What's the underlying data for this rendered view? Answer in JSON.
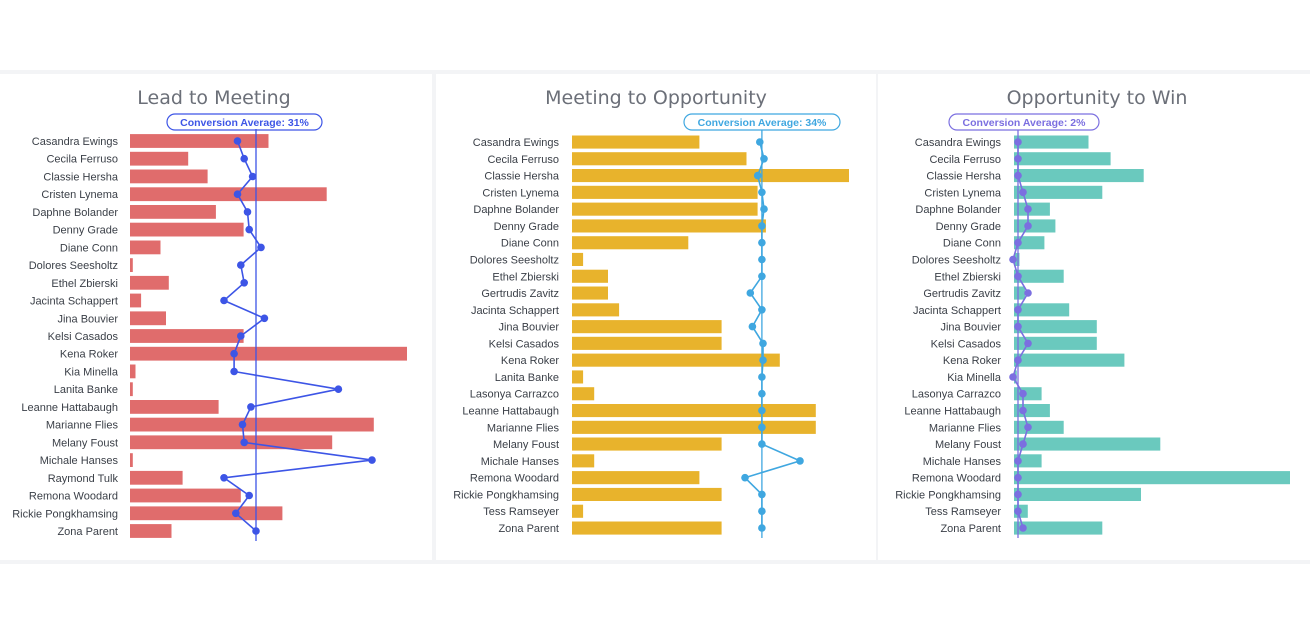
{
  "chart_data": [
    {
      "type": "bar",
      "title": "Lead to Meeting",
      "average_label": "Conversion Average: 31%",
      "bar_color": "#e06c6c",
      "accent_color": "#3d55e6",
      "categories": [
        "Casandra Ewings",
        "Cecila Ferruso",
        "Classie Hersha",
        "Cristen Lynema",
        "Daphne Bolander",
        "Denny Grade",
        "Diane Conn",
        "Dolores Seesholtz",
        "Ethel Zbierski",
        "Jacinta Schappert",
        "Jina Bouvier",
        "Kelsi Casados",
        "Kena Roker",
        "Kia Minella",
        "Lanita Banke",
        "Leanne Hattabaugh",
        "Marianne Flies",
        "Melany Foust",
        "Michale Hanses",
        "Raymond Tulk",
        "Remona Woodard",
        "Rickie Pongkhamsing",
        "Zona Parent"
      ],
      "values": [
        50,
        21,
        28,
        71,
        31,
        41,
        11,
        1,
        14,
        4,
        13,
        41,
        100,
        2,
        1,
        32,
        88,
        73,
        1,
        19,
        40,
        55,
        15
      ],
      "conversion_rates": [
        20,
        24,
        29,
        20,
        26,
        27,
        34,
        22,
        24,
        12,
        36,
        22,
        18,
        18,
        80,
        28,
        23,
        24,
        100,
        12,
        27,
        19,
        31
      ],
      "conversion_average": 31
    },
    {
      "type": "bar",
      "title": "Meeting to Opportunity",
      "average_label": "Conversion Average: 34%",
      "bar_color": "#e8b32c",
      "accent_color": "#3fa7e0",
      "categories": [
        "Casandra Ewings",
        "Cecila Ferruso",
        "Classie Hersha",
        "Cristen Lynema",
        "Daphne Bolander",
        "Denny Grade",
        "Diane Conn",
        "Dolores Seesholtz",
        "Ethel Zbierski",
        "Gertrudis Zavitz",
        "Jacinta Schappert",
        "Jina Bouvier",
        "Kelsi Casados",
        "Kena Roker",
        "Lanita Banke",
        "Lasonya Carrazco",
        "Leanne Hattabaugh",
        "Marianne Flies",
        "Melany Foust",
        "Michale Hanses",
        "Remona Woodard",
        "Rickie Pongkhamsing",
        "Tess Ramseyer",
        "Zona Parent"
      ],
      "values": [
        46,
        63,
        100,
        67,
        67,
        70,
        42,
        4,
        13,
        13,
        17,
        54,
        54,
        75,
        4,
        8,
        88,
        88,
        54,
        8,
        46,
        54,
        4,
        54
      ],
      "conversion_rates": [
        32,
        36,
        30,
        34,
        36,
        34,
        34,
        34,
        34,
        23,
        34,
        25,
        35,
        35,
        34,
        34,
        34,
        34,
        34,
        70,
        18,
        34,
        34,
        34
      ],
      "conversion_average": 34
    },
    {
      "type": "bar",
      "title": "Opportunity to Win",
      "average_label": "Conversion Average: 2%",
      "bar_color": "#6ac9be",
      "accent_color": "#7b6fe0",
      "categories": [
        "Casandra Ewings",
        "Cecila Ferruso",
        "Classie Hersha",
        "Cristen Lynema",
        "Daphne Bolander",
        "Denny Grade",
        "Diane Conn",
        "Dolores Seesholtz",
        "Ethel Zbierski",
        "Gertrudis Zavitz",
        "Jacinta Schappert",
        "Jina Bouvier",
        "Kelsi Casados",
        "Kena Roker",
        "Kia Minella",
        "Lasonya Carrazco",
        "Leanne Hattabaugh",
        "Marianne Flies",
        "Melany Foust",
        "Michale Hanses",
        "Remona Woodard",
        "Rickie Pongkhamsing",
        "Tess Ramseyer",
        "Zona Parent"
      ],
      "values": [
        27,
        35,
        47,
        32,
        13,
        15,
        11,
        2,
        18,
        4,
        20,
        30,
        30,
        40,
        1,
        10,
        13,
        18,
        53,
        10,
        100,
        46,
        5,
        32
      ],
      "conversion_rates": [
        2,
        2,
        2,
        3,
        4,
        4,
        2,
        1,
        2,
        4,
        2,
        2,
        4,
        2,
        1,
        3,
        3,
        4,
        3,
        2,
        2,
        2,
        2,
        3
      ],
      "conversion_average": 2
    }
  ]
}
